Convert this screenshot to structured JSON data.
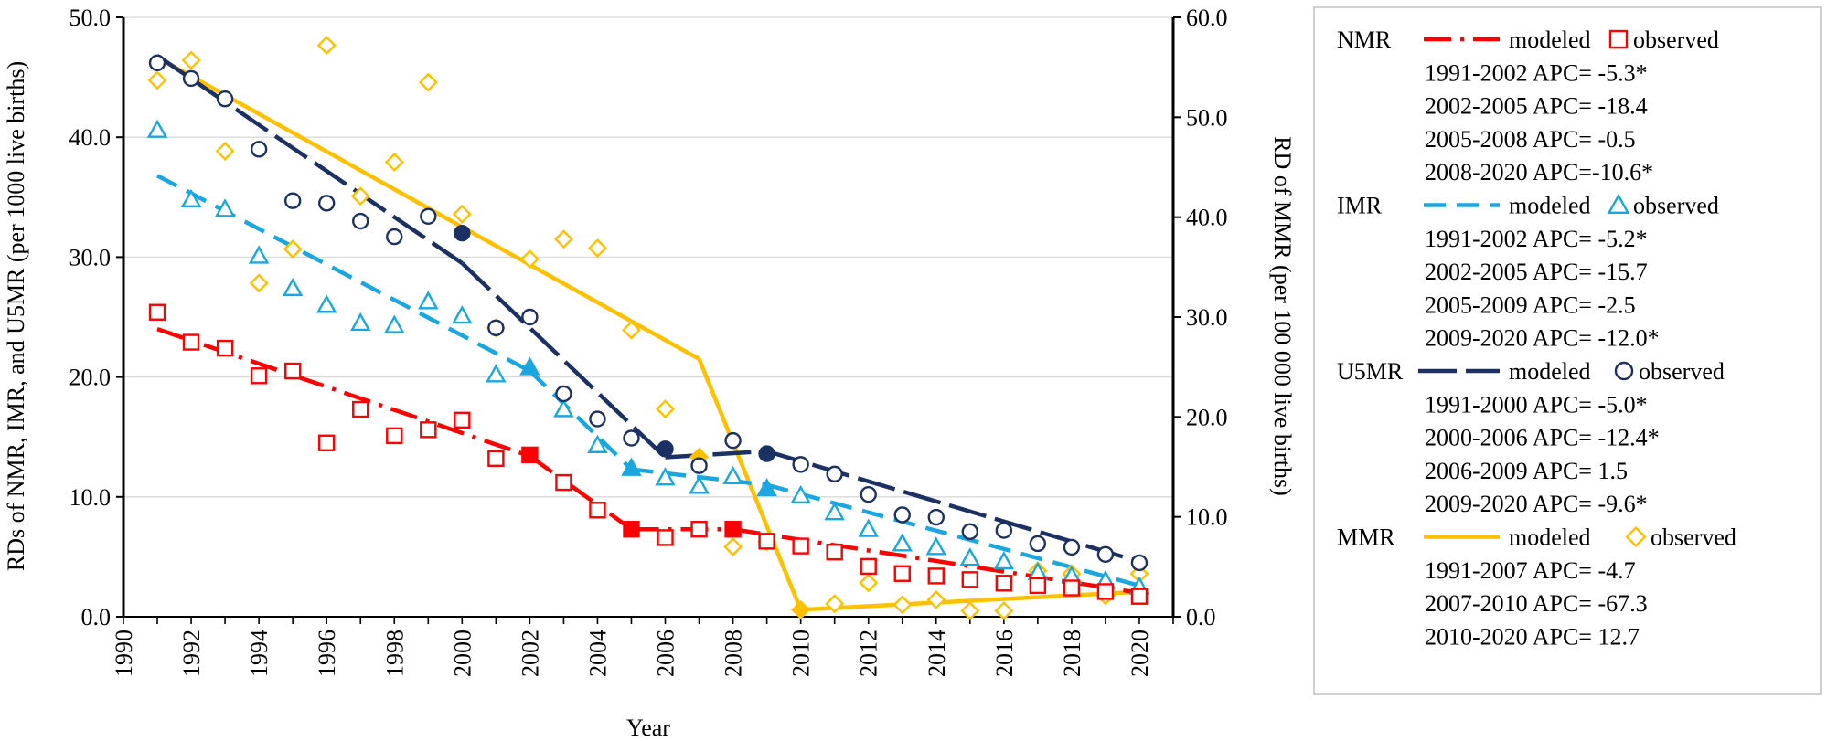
{
  "chart_data": {
    "type": "line",
    "xlabel": "Year",
    "ylabel_left": "RDs of  NMR, IMR, and U5MR (per 1000 live births)",
    "ylabel_right": "RD of  MMR (per 100 000 live births)",
    "xlim": [
      1990,
      2021
    ],
    "x_ticks": [
      "1990",
      "1992",
      "1994",
      "1996",
      "1998",
      "2000",
      "2002",
      "2004",
      "2006",
      "2008",
      "2010",
      "2012",
      "2014",
      "2016",
      "2018",
      "2020"
    ],
    "ylim_left": [
      0,
      50
    ],
    "ylim_right": [
      0,
      60
    ],
    "y_ticks_left": [
      "0.0",
      "10.0",
      "20.0",
      "30.0",
      "40.0",
      "50.0"
    ],
    "y_ticks_right": [
      "0.0",
      "10.0",
      "20.0",
      "30.0",
      "40.0",
      "50.0",
      "60.0"
    ],
    "series": [
      {
        "name": "NMR",
        "color": "#ff0000",
        "axis": "left",
        "dash": "dashdot",
        "marker": "square",
        "modeled_segments": [
          [
            [
              1991,
              24.0
            ],
            [
              2002,
              13.4
            ]
          ],
          [
            [
              2002,
              13.4
            ],
            [
              2005,
              7.3
            ]
          ],
          [
            [
              2005,
              7.3
            ],
            [
              2008,
              7.3
            ]
          ],
          [
            [
              2008,
              7.3
            ],
            [
              2020,
              2.0
            ]
          ]
        ],
        "observed": [
          [
            1991,
            25.4
          ],
          [
            1992,
            22.9
          ],
          [
            1993,
            22.4
          ],
          [
            1994,
            20.1
          ],
          [
            1995,
            20.5
          ],
          [
            1996,
            14.5
          ],
          [
            1997,
            17.3
          ],
          [
            1998,
            15.1
          ],
          [
            1999,
            15.6
          ],
          [
            2000,
            16.4
          ],
          [
            2001,
            13.2
          ],
          [
            2002,
            13.5
          ],
          [
            2003,
            11.2
          ],
          [
            2004,
            8.9
          ],
          [
            2005,
            7.3
          ],
          [
            2006,
            6.6
          ],
          [
            2007,
            7.3
          ],
          [
            2008,
            7.3
          ],
          [
            2009,
            6.3
          ],
          [
            2010,
            5.9
          ],
          [
            2011,
            5.4
          ],
          [
            2012,
            4.2
          ],
          [
            2013,
            3.6
          ],
          [
            2014,
            3.4
          ],
          [
            2015,
            3.1
          ],
          [
            2016,
            2.8
          ],
          [
            2017,
            2.6
          ],
          [
            2018,
            2.4
          ],
          [
            2019,
            2.1
          ],
          [
            2020,
            1.7
          ]
        ],
        "joinpoints": [
          2002,
          2005,
          2008
        ]
      },
      {
        "name": "IMR",
        "color": "#1aa7e0",
        "axis": "left",
        "dash": "dash",
        "marker": "triangle",
        "modeled_segments": [
          [
            [
              1991,
              36.8
            ],
            [
              2002,
              20.5
            ]
          ],
          [
            [
              2002,
              20.5
            ],
            [
              2005,
              12.3
            ]
          ],
          [
            [
              2005,
              12.3
            ],
            [
              2009,
              11.0
            ]
          ],
          [
            [
              2009,
              11.0
            ],
            [
              2020,
              2.6
            ]
          ]
        ],
        "observed": [
          [
            1991,
            40.6
          ],
          [
            1992,
            34.8
          ],
          [
            1993,
            34.0
          ],
          [
            1994,
            30.1
          ],
          [
            1995,
            27.4
          ],
          [
            1996,
            26.0
          ],
          [
            1997,
            24.5
          ],
          [
            1998,
            24.3
          ],
          [
            1999,
            26.3
          ],
          [
            2000,
            25.1
          ],
          [
            2001,
            20.2
          ],
          [
            2002,
            20.8
          ],
          [
            2003,
            17.3
          ],
          [
            2004,
            14.3
          ],
          [
            2005,
            12.4
          ],
          [
            2006,
            11.6
          ],
          [
            2007,
            10.9
          ],
          [
            2008,
            11.7
          ],
          [
            2009,
            10.7
          ],
          [
            2010,
            10.1
          ],
          [
            2011,
            8.7
          ],
          [
            2012,
            7.3
          ],
          [
            2013,
            6.1
          ],
          [
            2014,
            5.8
          ],
          [
            2015,
            4.9
          ],
          [
            2016,
            4.6
          ],
          [
            2017,
            3.7
          ],
          [
            2018,
            3.4
          ],
          [
            2019,
            3.0
          ],
          [
            2020,
            2.5
          ]
        ],
        "joinpoints": [
          2002,
          2005,
          2009
        ]
      },
      {
        "name": "U5MR",
        "color": "#1c3163",
        "axis": "left",
        "dash": "longdash",
        "marker": "circle",
        "modeled_segments": [
          [
            [
              1991,
              46.8
            ],
            [
              2000,
              29.5
            ]
          ],
          [
            [
              2000,
              29.5
            ],
            [
              2006,
              13.3
            ]
          ],
          [
            [
              2006,
              13.3
            ],
            [
              2009,
              13.8
            ]
          ],
          [
            [
              2009,
              13.8
            ],
            [
              2020,
              4.6
            ]
          ]
        ],
        "observed": [
          [
            1991,
            46.2
          ],
          [
            1992,
            44.9
          ],
          [
            1993,
            43.2
          ],
          [
            1994,
            39.0
          ],
          [
            1995,
            34.7
          ],
          [
            1996,
            34.5
          ],
          [
            1997,
            33.0
          ],
          [
            1998,
            31.7
          ],
          [
            1999,
            33.4
          ],
          [
            2000,
            32.0
          ],
          [
            2001,
            24.1
          ],
          [
            2002,
            25.0
          ],
          [
            2003,
            18.6
          ],
          [
            2004,
            16.5
          ],
          [
            2005,
            14.9
          ],
          [
            2006,
            14.0
          ],
          [
            2007,
            12.6
          ],
          [
            2008,
            14.7
          ],
          [
            2009,
            13.6
          ],
          [
            2010,
            12.7
          ],
          [
            2011,
            11.9
          ],
          [
            2012,
            10.2
          ],
          [
            2013,
            8.5
          ],
          [
            2014,
            8.3
          ],
          [
            2015,
            7.1
          ],
          [
            2016,
            7.2
          ],
          [
            2017,
            6.1
          ],
          [
            2018,
            5.8
          ],
          [
            2019,
            5.2
          ],
          [
            2020,
            4.5
          ]
        ],
        "joinpoints": [
          2000,
          2006,
          2009
        ]
      },
      {
        "name": "MMR",
        "color": "#ffc000",
        "axis": "right",
        "dash": "solid",
        "marker": "diamond",
        "modeled_segments": [
          [
            [
              1991,
              56.0
            ],
            [
              2007,
              25.8
            ]
          ],
          [
            [
              2007,
              25.8
            ],
            [
              2010,
              0.7
            ]
          ],
          [
            [
              2010,
              0.7
            ],
            [
              2020,
              2.5
            ]
          ]
        ],
        "observed": [
          [
            1991,
            53.7
          ],
          [
            1992,
            55.7
          ],
          [
            1993,
            46.6
          ],
          [
            1994,
            33.4
          ],
          [
            1995,
            36.8
          ],
          [
            1996,
            57.2
          ],
          [
            1997,
            42.1
          ],
          [
            1998,
            45.5
          ],
          [
            1999,
            53.5
          ],
          [
            2000,
            40.3
          ],
          [
            2001,
            28.9
          ],
          [
            2002,
            35.8
          ],
          [
            2003,
            37.8
          ],
          [
            2004,
            36.9
          ],
          [
            2005,
            28.7
          ],
          [
            2006,
            20.8
          ],
          [
            2007,
            16.0
          ],
          [
            2008,
            7.0
          ],
          [
            2009,
            7.5
          ],
          [
            2010,
            0.7
          ],
          [
            2011,
            1.3
          ],
          [
            2012,
            3.4
          ],
          [
            2013,
            1.2
          ],
          [
            2014,
            1.7
          ],
          [
            2015,
            0.6
          ],
          [
            2016,
            0.6
          ],
          [
            2017,
            4.6
          ],
          [
            2018,
            4.3
          ],
          [
            2019,
            2.1
          ],
          [
            2020,
            4.3
          ]
        ],
        "joinpoints": [
          2007,
          2010
        ]
      }
    ]
  },
  "legend": {
    "modeled_label": "modeled",
    "observed_label": "observed",
    "groups": [
      {
        "name": "NMR",
        "apc": [
          "1991-2002 APC= -5.3*",
          "2002-2005 APC= -18.4",
          "2005-2008 APC= -0.5",
          "2008-2020 APC=-10.6*"
        ]
      },
      {
        "name": "IMR",
        "apc": [
          "1991-2002 APC= -5.2*",
          "2002-2005 APC= -15.7",
          "2005-2009 APC= -2.5",
          "2009-2020 APC= -12.0*"
        ]
      },
      {
        "name": "U5MR",
        "apc": [
          "1991-2000 APC= -5.0*",
          "2000-2006 APC= -12.4*",
          "2006-2009 APC=  1.5",
          "2009-2020 APC= -9.6*"
        ]
      },
      {
        "name": "MMR",
        "apc": [
          "1991-2007 APC= -4.7",
          "2007-2010 APC= -67.3",
          "2010-2020 APC=  12.7"
        ]
      }
    ]
  }
}
